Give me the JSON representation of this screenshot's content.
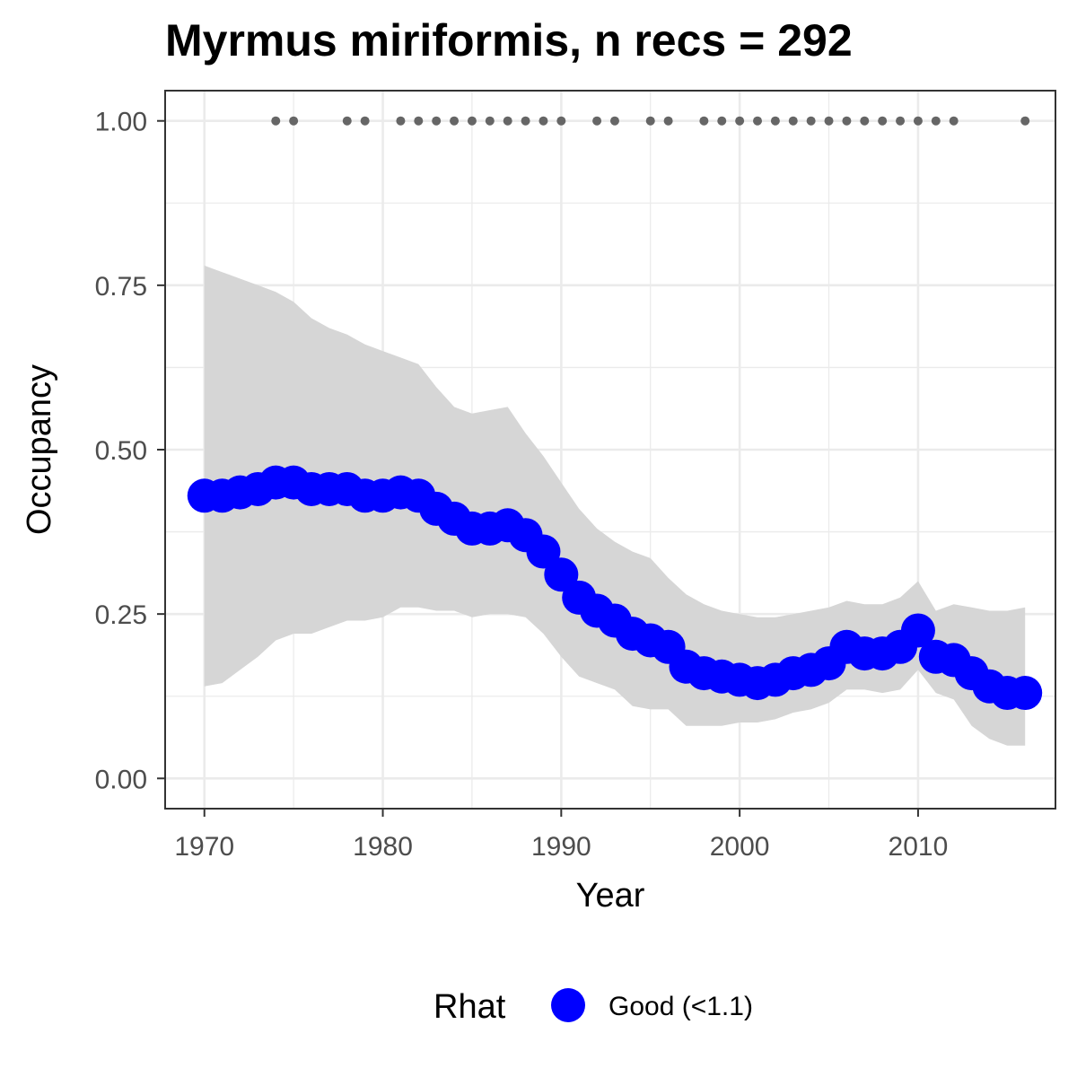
{
  "chart_data": {
    "type": "line",
    "title": "Myrmus miriformis, n recs = 292",
    "xlabel": "Year",
    "ylabel": "Occupancy",
    "xlim": [
      1967.8,
      2017.7
    ],
    "ylim": [
      -0.046,
      1.046
    ],
    "x_ticks": [
      1970,
      1980,
      1990,
      2000,
      2010
    ],
    "y_ticks": [
      0.0,
      0.25,
      0.5,
      0.75,
      1.0
    ],
    "y_tick_labels": [
      "0.00",
      "0.25",
      "0.50",
      "0.75",
      "1.00"
    ],
    "grid": true,
    "legend_position": "bottom",
    "legend": {
      "title": "Rhat",
      "entries": [
        {
          "label": "Good (<1.1)",
          "color": "#0000ff"
        }
      ]
    },
    "colors": {
      "series": "#0000ff",
      "ribbon": "#d6d6d6",
      "record_points": "#666666",
      "panel_border": "#333333",
      "grid": "#ebebeb"
    },
    "series": [
      {
        "x": [
          1970,
          1971,
          1972,
          1973,
          1974,
          1975,
          1976,
          1977,
          1978,
          1979,
          1980,
          1981,
          1982,
          1983,
          1984,
          1985,
          1986,
          1987,
          1988,
          1989,
          1990,
          1991,
          1992,
          1993,
          1994,
          1995,
          1996,
          1997,
          1998,
          1999,
          2000,
          2001,
          2002,
          2003,
          2004,
          2005,
          2006,
          2007,
          2008,
          2009,
          2010,
          2011,
          2012,
          2013,
          2014,
          2015,
          2016
        ],
        "values": [
          0.43,
          0.43,
          0.435,
          0.44,
          0.45,
          0.45,
          0.44,
          0.44,
          0.44,
          0.43,
          0.43,
          0.435,
          0.43,
          0.41,
          0.395,
          0.38,
          0.38,
          0.385,
          0.37,
          0.345,
          0.31,
          0.275,
          0.255,
          0.24,
          0.22,
          0.21,
          0.2,
          0.17,
          0.16,
          0.155,
          0.15,
          0.145,
          0.15,
          0.16,
          0.165,
          0.175,
          0.2,
          0.19,
          0.19,
          0.2,
          0.225,
          0.185,
          0.18,
          0.16,
          0.14,
          0.13,
          0.13
        ],
        "lower": [
          0.14,
          0.145,
          0.165,
          0.185,
          0.21,
          0.22,
          0.22,
          0.23,
          0.24,
          0.24,
          0.245,
          0.26,
          0.26,
          0.255,
          0.255,
          0.245,
          0.25,
          0.25,
          0.245,
          0.22,
          0.185,
          0.155,
          0.145,
          0.135,
          0.11,
          0.105,
          0.105,
          0.08,
          0.08,
          0.08,
          0.085,
          0.085,
          0.09,
          0.1,
          0.105,
          0.115,
          0.135,
          0.135,
          0.13,
          0.135,
          0.165,
          0.13,
          0.12,
          0.08,
          0.06,
          0.05,
          0.05
        ],
        "upper": [
          0.78,
          0.77,
          0.76,
          0.75,
          0.74,
          0.725,
          0.7,
          0.685,
          0.675,
          0.66,
          0.65,
          0.64,
          0.63,
          0.595,
          0.565,
          0.555,
          0.56,
          0.565,
          0.525,
          0.49,
          0.45,
          0.41,
          0.38,
          0.36,
          0.345,
          0.335,
          0.305,
          0.28,
          0.265,
          0.255,
          0.25,
          0.245,
          0.245,
          0.25,
          0.255,
          0.26,
          0.27,
          0.265,
          0.265,
          0.275,
          0.3,
          0.255,
          0.265,
          0.26,
          0.255,
          0.255,
          0.26
        ]
      }
    ],
    "records": {
      "y": 1.0,
      "years": [
        1974,
        1975,
        1978,
        1979,
        1981,
        1982,
        1983,
        1984,
        1985,
        1986,
        1987,
        1988,
        1989,
        1990,
        1992,
        1993,
        1995,
        1996,
        1998,
        1999,
        2000,
        2001,
        2002,
        2003,
        2004,
        2005,
        2006,
        2007,
        2008,
        2009,
        2010,
        2011,
        2012,
        2016
      ]
    }
  }
}
